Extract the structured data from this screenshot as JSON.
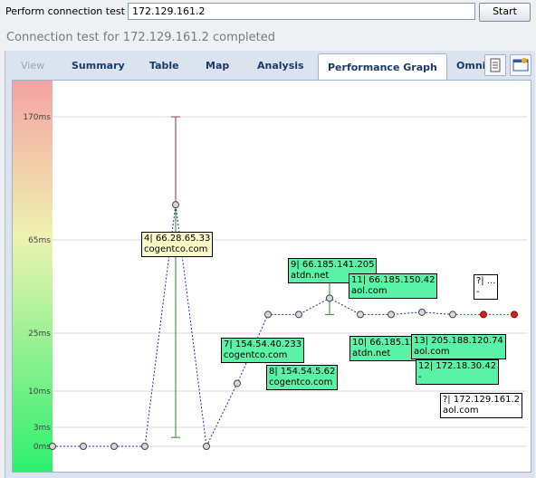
{
  "toolbar": {
    "label": "Perform connection test to",
    "host": "172.129.161.2",
    "start_label": "Start"
  },
  "status": "Connection test for 172.129.161.2 completed",
  "tabs": [
    {
      "label": "View",
      "state": "disabled"
    },
    {
      "label": "Summary",
      "state": "normal"
    },
    {
      "label": "Table",
      "state": "normal"
    },
    {
      "label": "Map",
      "state": "normal"
    },
    {
      "label": "Analysis",
      "state": "normal"
    },
    {
      "label": "Performance Graph",
      "state": "active"
    },
    {
      "label": "Omni",
      "state": "normal"
    }
  ],
  "icons": [
    "report-icon",
    "snapshot-icon"
  ],
  "chart_data": {
    "type": "line",
    "y_scale": "nonlinear",
    "yticks": [
      "170ms",
      "65ms",
      "25ms",
      "10ms",
      "3ms",
      "0ms"
    ],
    "hops": [
      {
        "hop": 1,
        "ms": 0
      },
      {
        "hop": 2,
        "ms": 0
      },
      {
        "hop": 3,
        "ms": 0
      },
      {
        "hop": 4,
        "ms": 0
      },
      {
        "hop": 5,
        "ms": 95,
        "label_title": "4| 66.28.65.33",
        "label_sub": "cogentco.com"
      },
      {
        "hop": 6,
        "ms": 0
      },
      {
        "hop": 7,
        "ms": 12
      },
      {
        "hop": 8,
        "ms": 33,
        "label_title": "7| 154.54.40.233",
        "label_sub": "cogentco.com"
      },
      {
        "hop": 9,
        "ms": 33,
        "label_title": "8| 154.54.5.62",
        "label_sub": "cogentco.com"
      },
      {
        "hop": 10,
        "ms": 40,
        "label_title": "9| 66.185.141.205",
        "label_sub": "atdn.net"
      },
      {
        "hop": 11,
        "ms": 33,
        "label_title": "10| 66.185.152.113",
        "label_sub": "atdn.net"
      },
      {
        "hop": 12,
        "ms": 33,
        "label_title": "11| 66.185.150.42",
        "label_sub": "aol.com"
      },
      {
        "hop": 13,
        "ms": 34,
        "label_title": "12| 172.18.30.42",
        "label_sub": "-"
      },
      {
        "hop": 14,
        "ms": 33,
        "label_title": "13| 205.188.120.74",
        "label_sub": "aol.com"
      },
      {
        "hop": 15,
        "ms": 33,
        "label_title": "?| ...",
        "label_sub": "-"
      },
      {
        "hop": 16,
        "ms": 33,
        "label_title": "?| 172.129.161.2",
        "label_sub": "aol.com"
      }
    ],
    "colors": {
      "line": "#1a2faa",
      "timeout": "#d42020",
      "grid": "#d8d8d8",
      "error_bar_high": "#8b3a3a",
      "error_bar_low": "#2a8a2a"
    }
  }
}
